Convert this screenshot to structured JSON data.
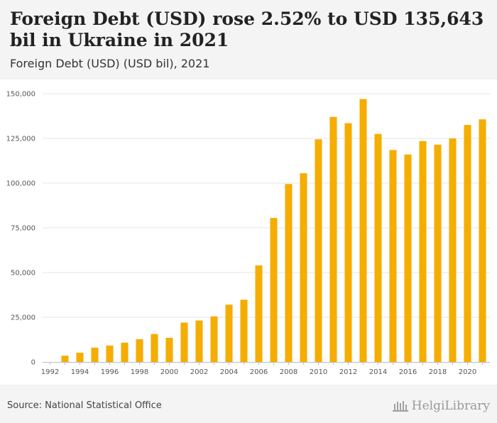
{
  "header": {
    "title": "Foreign Debt (USD) rose 2.52% to USD 135,643 bil in Ukraine in 2021",
    "subtitle": "Foreign Debt (USD) (USD bil), 2021"
  },
  "footer": {
    "source": "Source: National Statistical Office",
    "logo_text": "HelgiLibrary"
  },
  "colors": {
    "bar": "#f5ad00",
    "grid": "#e6e6e6",
    "axis": "#bbbbbb",
    "tick_text": "#555555"
  },
  "chart_data": {
    "type": "bar",
    "categories": [
      "1992",
      "1993",
      "1994",
      "1995",
      "1996",
      "1997",
      "1998",
      "1999",
      "2000",
      "2001",
      "2002",
      "2003",
      "2004",
      "2005",
      "2006",
      "2007",
      "2008",
      "2009",
      "2010",
      "2011",
      "2012",
      "2013",
      "2014",
      "2015",
      "2016",
      "2017",
      "2018",
      "2019",
      "2020",
      "2021"
    ],
    "values": [
      0,
      3500,
      5200,
      8000,
      9200,
      10800,
      12700,
      15600,
      13500,
      22000,
      23200,
      25500,
      32000,
      34800,
      54000,
      80500,
      99500,
      105500,
      124500,
      137000,
      133500,
      147000,
      127500,
      118500,
      116000,
      123500,
      121500,
      125000,
      132500,
      135643
    ],
    "x_tick_labels": [
      "1992",
      "1994",
      "1996",
      "1998",
      "2000",
      "2002",
      "2004",
      "2006",
      "2008",
      "2010",
      "2012",
      "2014",
      "2016",
      "2018",
      "2020"
    ],
    "y_ticks": [
      0,
      25000,
      50000,
      75000,
      100000,
      125000,
      150000
    ],
    "y_tick_labels": [
      "0",
      "25,000",
      "50,000",
      "75,000",
      "100,000",
      "125,000",
      "150,000"
    ],
    "ylim": [
      0,
      150000
    ],
    "grid": true
  }
}
